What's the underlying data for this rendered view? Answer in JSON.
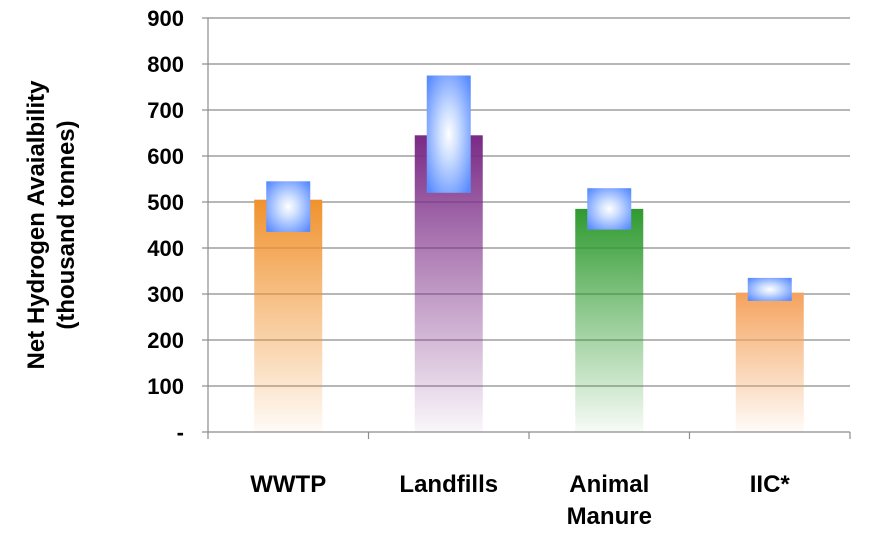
{
  "chart_data": {
    "type": "bar",
    "title": "",
    "ylabel": [
      "Net Hydrogen Avaialbility",
      "(thousand tonnes)"
    ],
    "xlabel": "",
    "ylim": [
      0,
      900
    ],
    "y_ticks": [
      {
        "value": 0,
        "label": "-"
      },
      {
        "value": 100,
        "label": "100"
      },
      {
        "value": 200,
        "label": "200"
      },
      {
        "value": 300,
        "label": "300"
      },
      {
        "value": 400,
        "label": "400"
      },
      {
        "value": 500,
        "label": "500"
      },
      {
        "value": 600,
        "label": "600"
      },
      {
        "value": 700,
        "label": "700"
      },
      {
        "value": 800,
        "label": "800"
      },
      {
        "value": 900,
        "label": "900"
      }
    ],
    "grid": true,
    "categories": [
      [
        "WWTP"
      ],
      [
        "Landfills"
      ],
      [
        "Animal",
        "Manure"
      ],
      [
        "IIC*"
      ]
    ],
    "values": [
      505,
      645,
      485,
      303
    ],
    "range_markers": [
      {
        "low": 435,
        "high": 545
      },
      {
        "low": 520,
        "high": 775
      },
      {
        "low": 440,
        "high": 530
      },
      {
        "low": 285,
        "high": 335
      }
    ],
    "bar_colors": [
      "#f0922e",
      "#7a2a85",
      "#2e9a2e",
      "#f5a25c"
    ],
    "marker_color": "#5a8cff"
  }
}
